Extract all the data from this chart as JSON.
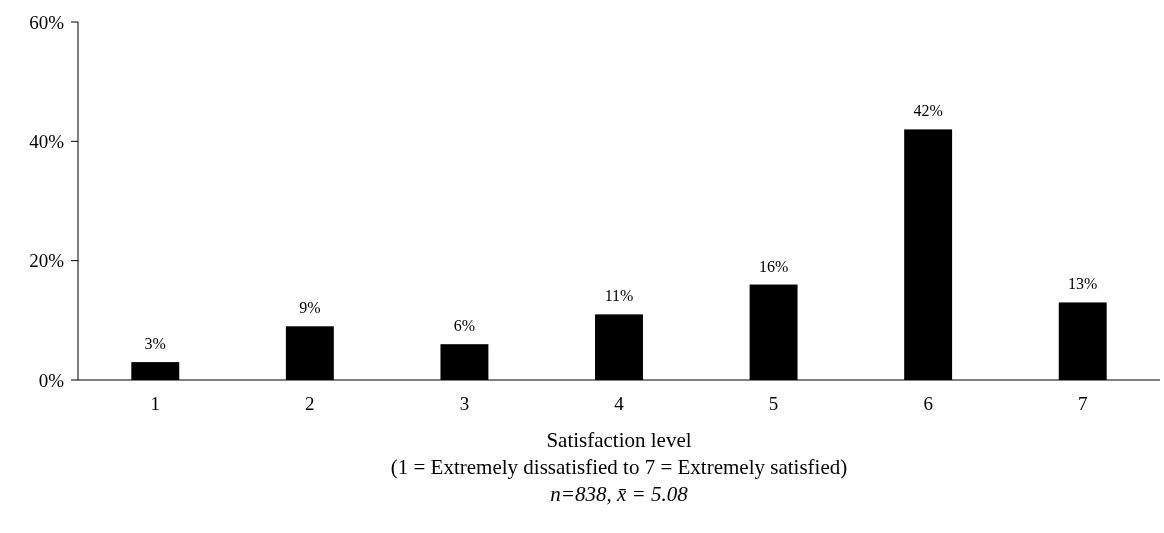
{
  "chart_data": {
    "type": "bar",
    "categories": [
      "1",
      "2",
      "3",
      "4",
      "5",
      "6",
      "7"
    ],
    "values": [
      3,
      9,
      6,
      11,
      16,
      42,
      13
    ],
    "value_labels": [
      "3%",
      "9%",
      "6%",
      "11%",
      "16%",
      "42%",
      "13%"
    ],
    "color": "#000000",
    "xlabel": "Satisfaction level\n(1 = Extremely dissatisfied to 7 = Extremely satisfied)",
    "annotations": [
      "n=838, x̄ = 5.08"
    ],
    "ylim": [
      0,
      60
    ],
    "yticks": [
      {
        "value": 0,
        "label": "0%"
      },
      {
        "value": 20,
        "label": "20%"
      },
      {
        "value": 40,
        "label": "40%"
      },
      {
        "value": 60,
        "label": "60%"
      }
    ],
    "grid": false
  }
}
